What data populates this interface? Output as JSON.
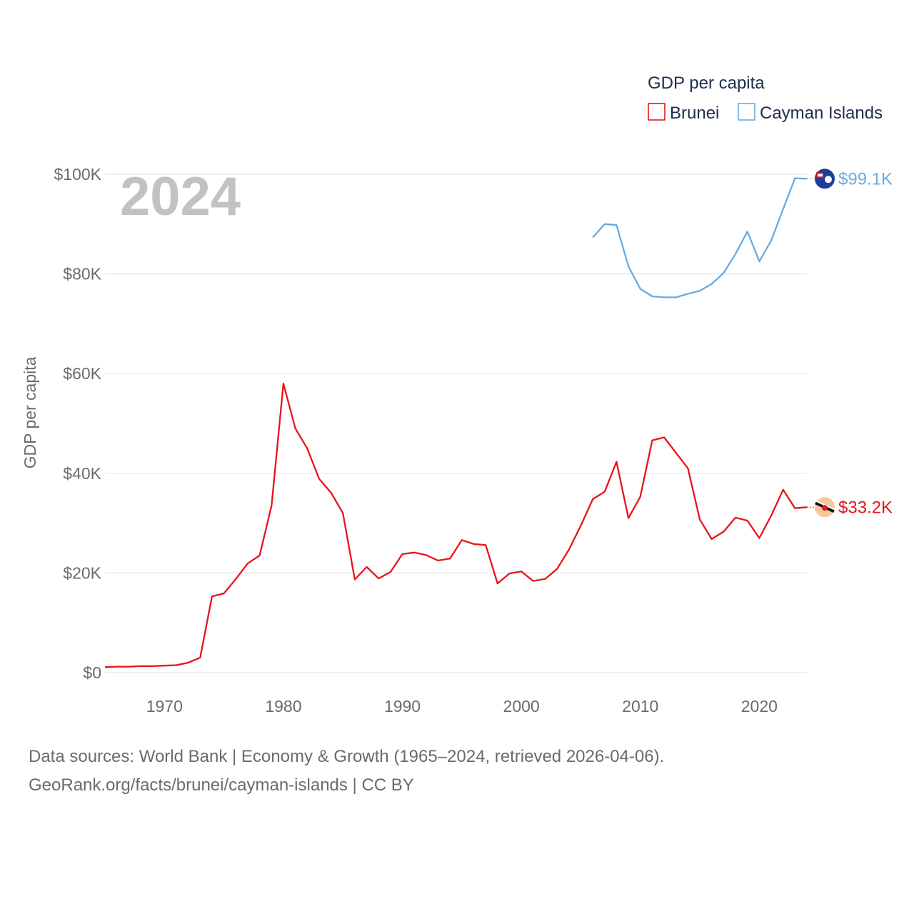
{
  "chart_data": {
    "type": "line",
    "year_label": "2024",
    "ylabel": "GDP per capita",
    "ylim": [
      0,
      100000
    ],
    "xlim": [
      1965,
      2024
    ],
    "y_ticks": [
      {
        "value": 0,
        "label": "$0"
      },
      {
        "value": 20000,
        "label": "$20K"
      },
      {
        "value": 40000,
        "label": "$40K"
      },
      {
        "value": 60000,
        "label": "$60K"
      },
      {
        "value": 80000,
        "label": "$80K"
      },
      {
        "value": 100000,
        "label": "$100K"
      }
    ],
    "x_ticks": [
      {
        "value": 1970,
        "label": "1970"
      },
      {
        "value": 1980,
        "label": "1980"
      },
      {
        "value": 1990,
        "label": "1990"
      },
      {
        "value": 2000,
        "label": "2000"
      },
      {
        "value": 2010,
        "label": "2010"
      },
      {
        "value": 2020,
        "label": "2020"
      }
    ],
    "legend": {
      "title": "GDP per capita",
      "position": "top-right"
    },
    "series": [
      {
        "name": "Brunei",
        "color": "#e8141b",
        "end_label": "$33.2K",
        "flag": "brunei-flag",
        "x": [
          1965,
          1966,
          1967,
          1968,
          1969,
          1970,
          1971,
          1972,
          1973,
          1974,
          1975,
          1976,
          1977,
          1978,
          1979,
          1980,
          1981,
          1982,
          1983,
          1984,
          1985,
          1986,
          1987,
          1988,
          1989,
          1990,
          1991,
          1992,
          1993,
          1994,
          1995,
          1996,
          1997,
          1998,
          1999,
          2000,
          2001,
          2002,
          2003,
          2004,
          2005,
          2006,
          2007,
          2008,
          2009,
          2010,
          2011,
          2012,
          2013,
          2014,
          2015,
          2016,
          2017,
          2018,
          2019,
          2020,
          2021,
          2022,
          2023,
          2024
        ],
        "values": [
          1100,
          1200,
          1200,
          1300,
          1300,
          1400,
          1500,
          2000,
          3000,
          15300,
          15900,
          18800,
          21900,
          23500,
          33500,
          58000,
          49000,
          45000,
          38900,
          36100,
          32000,
          18700,
          21200,
          18900,
          20200,
          23800,
          24100,
          23600,
          22500,
          22900,
          26600,
          25800,
          25600,
          17900,
          19900,
          20300,
          18400,
          18800,
          20800,
          24700,
          29500,
          34800,
          36300,
          42300,
          31000,
          35300,
          46600,
          47200,
          44100,
          41000,
          30700,
          26800,
          28300,
          31100,
          30500,
          27000,
          31500,
          36700,
          33000,
          33200
        ]
      },
      {
        "name": "Cayman Islands",
        "color": "#6aaae0",
        "end_label": "$99.1K",
        "flag": "cayman-islands-flag",
        "x": [
          2006,
          2007,
          2008,
          2009,
          2010,
          2011,
          2012,
          2013,
          2014,
          2015,
          2016,
          2017,
          2018,
          2019,
          2020,
          2021,
          2022,
          2023,
          2024
        ],
        "values": [
          87300,
          90000,
          89800,
          81500,
          77000,
          75500,
          75300,
          75300,
          76000,
          76600,
          78000,
          80200,
          84000,
          88500,
          82500,
          86700,
          93000,
          99200,
          99100
        ]
      }
    ]
  },
  "footer": {
    "line1": "Data sources: World Bank | Economy & Growth (1965–2024, retrieved 2026-04-06).",
    "line2": "GeoRank.org/facts/brunei/cayman-islands | CC BY"
  }
}
